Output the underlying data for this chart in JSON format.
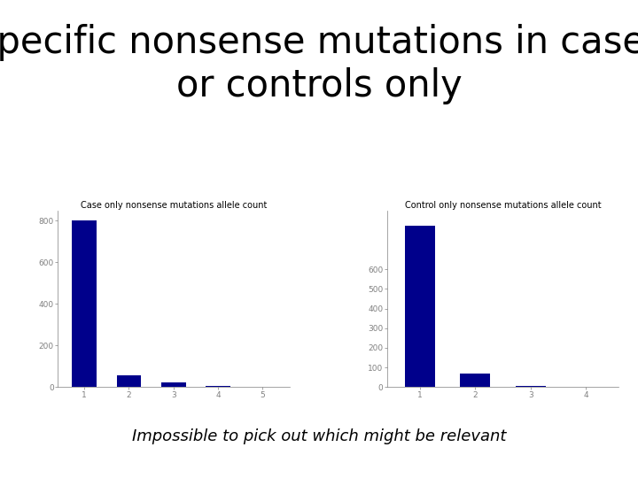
{
  "title": "Specific nonsense mutations in cases\nor controls only",
  "subtitle": "Impossible to pick out which might be relevant",
  "chart1_title": "Case only nonsense mutations allele count",
  "chart2_title": "Control only nonsense mutations allele count",
  "case_values": [
    800,
    55,
    22,
    6,
    3
  ],
  "case_xticks": [
    1,
    2,
    3,
    4,
    5
  ],
  "case_ylim": [
    0,
    850
  ],
  "case_yticks": [
    0,
    200,
    400,
    600,
    800
  ],
  "control_values": [
    820,
    70,
    8,
    4
  ],
  "control_xticks": [
    1,
    2,
    3,
    4
  ],
  "control_ylim": [
    0,
    900
  ],
  "control_yticks": [
    0,
    100,
    200,
    300,
    400,
    500,
    600
  ],
  "bar_color": "#00008B",
  "bg_color": "#ffffff",
  "title_fontsize": 30,
  "subtitle_fontsize": 13,
  "chart_title_fontsize": 7,
  "tick_fontsize": 6.5
}
